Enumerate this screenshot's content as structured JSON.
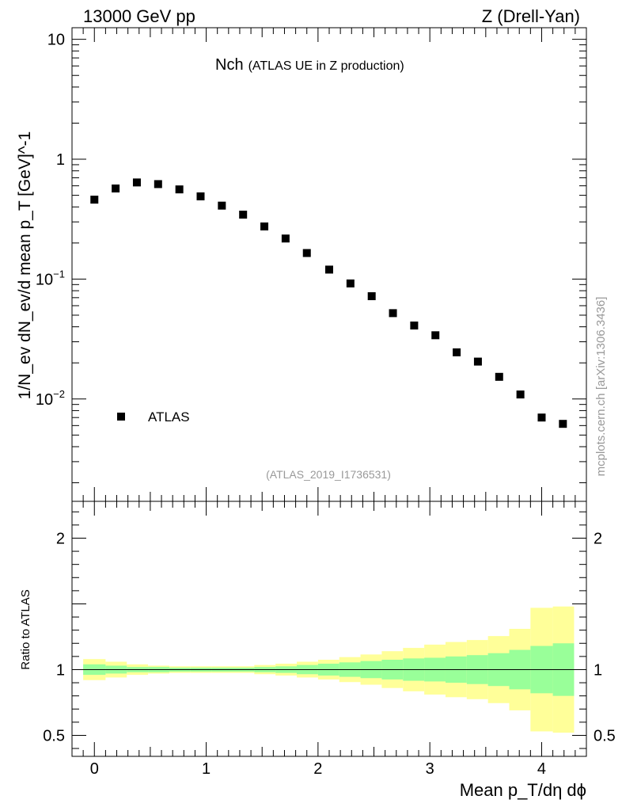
{
  "chart_data": [
    {
      "type": "scatter",
      "panel": "main",
      "header_left": "13000 GeV pp",
      "header_right": "Z (Drell-Yan)",
      "title": "Nch",
      "subtitle": "(ATLAS UE in Z production)",
      "ylabel": "1/N_ev dN_ev/d mean p_T [GeV]^-1",
      "yscale": "log",
      "ylim": [
        0.0014,
        12.5
      ],
      "xlim": [
        -0.2,
        4.4
      ],
      "y_ticks": [
        {
          "value": 10,
          "label": "10"
        },
        {
          "value": 1,
          "label": "1"
        },
        {
          "value": 0.1,
          "label": "10",
          "exp": "−1"
        },
        {
          "value": 0.01,
          "label": "10",
          "exp": "−2"
        }
      ],
      "legend": {
        "position": "bottom-left",
        "entries": [
          "ATLAS"
        ]
      },
      "series": [
        {
          "name": "ATLAS",
          "color": "#000000",
          "x": [
            0.0,
            0.19,
            0.38,
            0.57,
            0.76,
            0.95,
            1.14,
            1.33,
            1.52,
            1.71,
            1.9,
            2.1,
            2.29,
            2.48,
            2.67,
            2.86,
            3.05,
            3.24,
            3.43,
            3.62,
            3.81,
            4.0,
            4.19
          ],
          "y": [
            0.46,
            0.57,
            0.64,
            0.62,
            0.56,
            0.49,
            0.41,
            0.345,
            0.275,
            0.218,
            0.165,
            0.12,
            0.092,
            0.072,
            0.052,
            0.041,
            0.034,
            0.0245,
            0.0205,
            0.0153,
            0.0109,
            0.007,
            0.0062
          ]
        }
      ],
      "annotation": "(ATLAS_2019_I1736531)",
      "side_label": "mcplots.cern.ch [arXiv:1306.3436]"
    },
    {
      "type": "area",
      "panel": "ratio",
      "ylabel": "Ratio to ATLAS",
      "xlabel": "Mean p_T/dη dϕ",
      "ylim": [
        0.34,
        2.28
      ],
      "xlim": [
        -0.2,
        4.4
      ],
      "reference_line": 1,
      "y_ticks": [
        0.5,
        1,
        2
      ],
      "x_ticks": [
        0,
        1,
        2,
        3,
        4
      ],
      "bin_edges": [
        -0.1,
        0.1,
        0.29,
        0.48,
        0.67,
        0.86,
        1.05,
        1.24,
        1.43,
        1.62,
        1.81,
        2.0,
        2.19,
        2.38,
        2.57,
        2.76,
        2.95,
        3.14,
        3.33,
        3.52,
        3.71,
        3.9,
        4.1,
        4.29
      ],
      "bands": [
        {
          "name": "stat",
          "color": "#99ff99",
          "lower": [
            0.96,
            0.97,
            0.98,
            0.98,
            0.985,
            0.985,
            0.985,
            0.985,
            0.98,
            0.975,
            0.965,
            0.955,
            0.945,
            0.935,
            0.925,
            0.915,
            0.91,
            0.9,
            0.89,
            0.875,
            0.85,
            0.82,
            0.8
          ],
          "upper": [
            1.04,
            1.03,
            1.02,
            1.02,
            1.015,
            1.015,
            1.015,
            1.015,
            1.02,
            1.025,
            1.035,
            1.045,
            1.055,
            1.065,
            1.075,
            1.085,
            1.09,
            1.1,
            1.11,
            1.125,
            1.15,
            1.18,
            1.2
          ]
        },
        {
          "name": "syst",
          "color": "#ffff99",
          "lower": [
            0.92,
            0.94,
            0.96,
            0.97,
            0.975,
            0.975,
            0.975,
            0.975,
            0.965,
            0.955,
            0.94,
            0.925,
            0.905,
            0.885,
            0.86,
            0.835,
            0.81,
            0.79,
            0.775,
            0.745,
            0.69,
            0.53,
            0.52
          ],
          "upper": [
            1.08,
            1.06,
            1.04,
            1.03,
            1.025,
            1.025,
            1.025,
            1.025,
            1.035,
            1.045,
            1.06,
            1.075,
            1.095,
            1.115,
            1.14,
            1.165,
            1.19,
            1.21,
            1.225,
            1.255,
            1.31,
            1.47,
            1.48
          ]
        }
      ]
    }
  ]
}
